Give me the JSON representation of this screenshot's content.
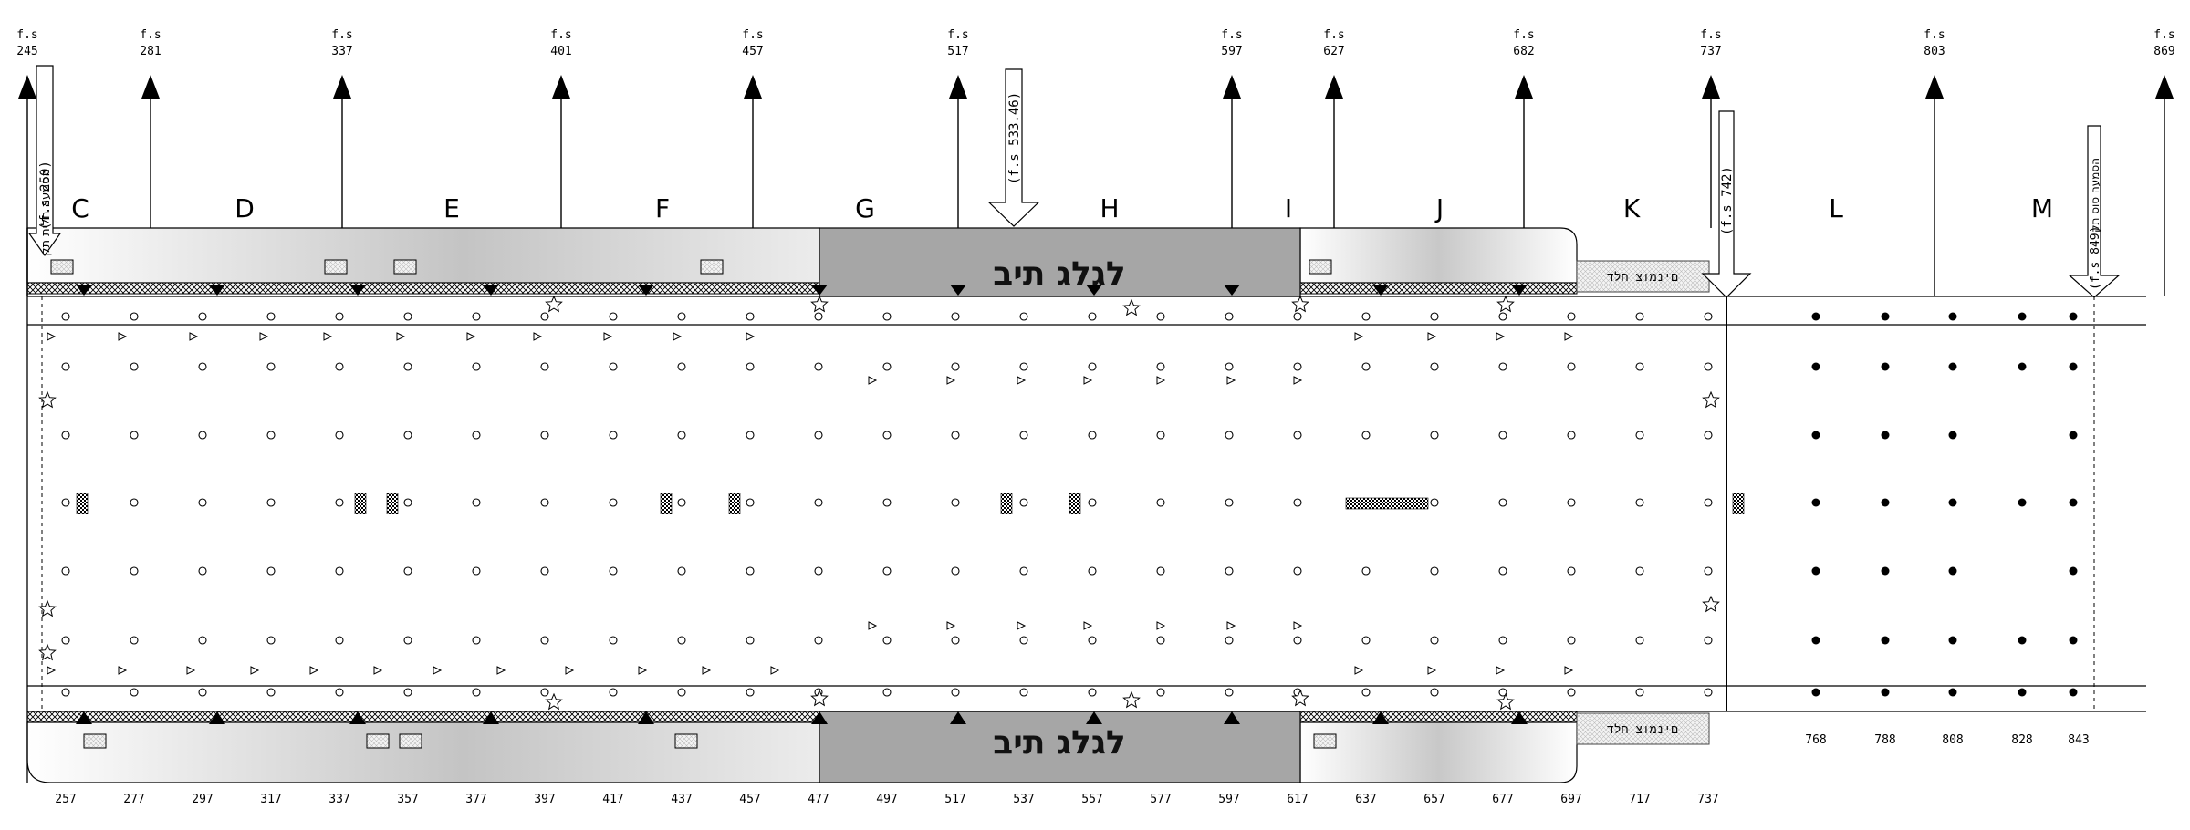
{
  "stations": [
    {
      "top": "f.s",
      "num": "245"
    },
    {
      "top": "f.s",
      "num": "281"
    },
    {
      "top": "f.s",
      "num": "337"
    },
    {
      "top": "f.s",
      "num": "401"
    },
    {
      "top": "f.s",
      "num": "457"
    },
    {
      "top": "f.s",
      "num": "517"
    },
    {
      "top": "f.s",
      "num": "597"
    },
    {
      "top": "f.s",
      "num": "627"
    },
    {
      "top": "f.s",
      "num": "682"
    },
    {
      "top": "f.s",
      "num": "737"
    },
    {
      "top": "f.s",
      "num": "803"
    },
    {
      "top": "f.s",
      "num": "869"
    }
  ],
  "sections": [
    "C",
    "D",
    "E",
    "F",
    "G",
    "H",
    "I",
    "J",
    "K",
    "L",
    "M"
  ],
  "callouts": {
    "rear_fwd_hebrew": "הסמעה חלית תק",
    "rear_fwd_station": "(f.s 250)",
    "mid_station": "(f.s 533.46)",
    "k_station": "(f.s 742)",
    "aft_hebrew": "הסמעה סוס תק",
    "aft_station": "(f.s 849)"
  },
  "wheel_well": {
    "top_label": "לגלג תיב",
    "bottom_label": "לגלג תיב"
  },
  "fairing": {
    "top_label": "םינמוצ חלד",
    "bottom_label": "םינמוצ חלד"
  },
  "bottom_stations": [
    "257",
    "277",
    "297",
    "317",
    "337",
    "357",
    "377",
    "397",
    "417",
    "437",
    "457",
    "477",
    "497",
    "517",
    "537",
    "557",
    "577",
    "597",
    "617",
    "637",
    "657",
    "677",
    "697",
    "717",
    "737"
  ],
  "aft_bottom_stations": [
    "768",
    "788",
    "808",
    "828",
    "843"
  ],
  "colors": {
    "wheel_well": "#a6a6a6",
    "fairing_shade": "#d0d0d0",
    "line": "#000000"
  }
}
